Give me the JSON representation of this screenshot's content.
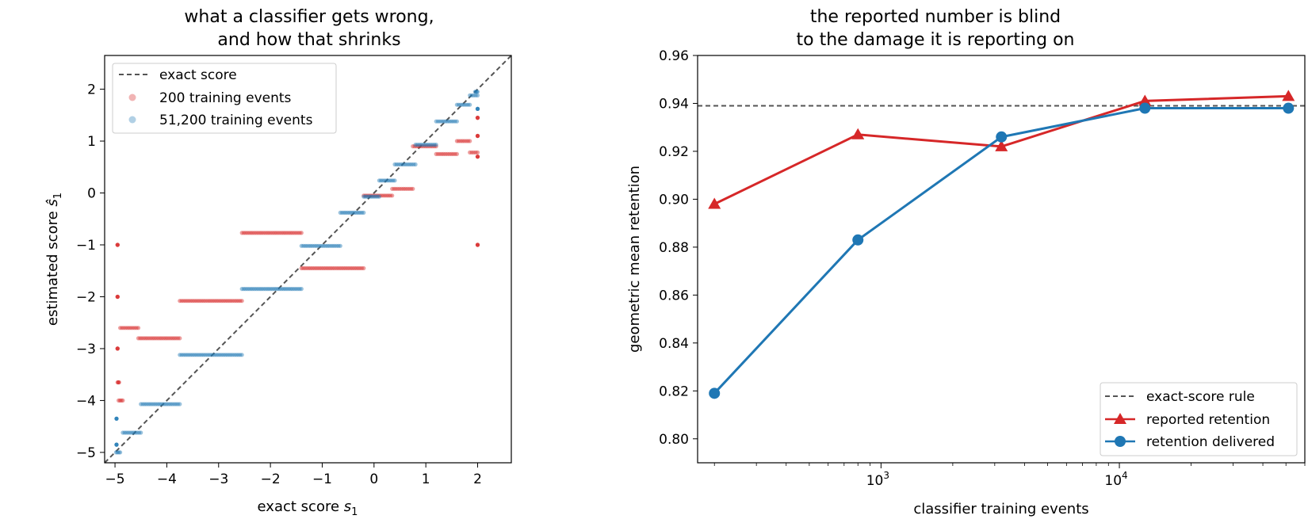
{
  "chart_data": [
    {
      "type": "scatter",
      "title_line1": "what a classifier gets wrong,",
      "title_line2": "and how that shrinks",
      "xlabel": "exact score",
      "xlabel_sym": "s",
      "xlabel_sub": "1",
      "ylabel": "estimated score",
      "ylabel_sym": "ŝ",
      "ylabel_sub": "1",
      "xlim": [
        -5.2,
        2.65
      ],
      "ylim": [
        -5.2,
        2.65
      ],
      "xticks": [
        -5,
        -4,
        -3,
        -2,
        -1,
        0,
        1,
        2
      ],
      "yticks": [
        -5,
        -4,
        -3,
        -2,
        -1,
        0,
        1,
        2
      ],
      "tick_labels": [
        "−5",
        "−4",
        "−3",
        "−2",
        "−1",
        "0",
        "1",
        "2"
      ],
      "legend_position": "upper-left",
      "reference_line": {
        "name": "exact score",
        "style": "dashed",
        "color": "#555555"
      },
      "series": [
        {
          "name": "200 training events",
          "color": "#d62728",
          "steps": [
            {
              "x0": -4.95,
              "x1": -4.95,
              "y": -1.0
            },
            {
              "x0": -4.95,
              "x1": -4.95,
              "y": -2.0
            },
            {
              "x0": -4.95,
              "x1": -4.95,
              "y": -3.0
            },
            {
              "x0": -4.95,
              "x1": -4.92,
              "y": -3.65
            },
            {
              "x0": -4.93,
              "x1": -4.85,
              "y": -4.0
            },
            {
              "x0": -4.9,
              "x1": -4.55,
              "y": -2.6
            },
            {
              "x0": -4.55,
              "x1": -3.75,
              "y": -2.8
            },
            {
              "x0": -3.75,
              "x1": -2.55,
              "y": -2.08
            },
            {
              "x0": -2.55,
              "x1": -1.4,
              "y": -0.77
            },
            {
              "x0": -1.4,
              "x1": -0.2,
              "y": -1.45
            },
            {
              "x0": -0.2,
              "x1": 0.35,
              "y": -0.05
            },
            {
              "x0": 0.35,
              "x1": 0.75,
              "y": 0.08
            },
            {
              "x0": 0.75,
              "x1": 1.2,
              "y": 0.9
            },
            {
              "x0": 1.2,
              "x1": 1.6,
              "y": 0.75
            },
            {
              "x0": 1.6,
              "x1": 1.85,
              "y": 1.0
            },
            {
              "x0": 1.85,
              "x1": 2.0,
              "y": 0.78
            },
            {
              "x0": 2.0,
              "x1": 2.0,
              "y": 0.7
            },
            {
              "x0": 2.0,
              "x1": 2.0,
              "y": 1.1
            },
            {
              "x0": 2.0,
              "x1": 2.0,
              "y": 1.45
            },
            {
              "x0": 2.0,
              "x1": 2.0,
              "y": -1.0
            }
          ]
        },
        {
          "name": "51,200 training events",
          "color": "#1f77b4",
          "steps": [
            {
              "x0": -4.98,
              "x1": -4.9,
              "y": -5.0
            },
            {
              "x0": -4.97,
              "x1": -4.97,
              "y": -4.85
            },
            {
              "x0": -4.97,
              "x1": -4.97,
              "y": -4.35
            },
            {
              "x0": -4.85,
              "x1": -4.5,
              "y": -4.62
            },
            {
              "x0": -4.5,
              "x1": -3.75,
              "y": -4.07
            },
            {
              "x0": -3.75,
              "x1": -2.55,
              "y": -3.12
            },
            {
              "x0": -2.55,
              "x1": -1.4,
              "y": -1.85
            },
            {
              "x0": -1.4,
              "x1": -0.65,
              "y": -1.02
            },
            {
              "x0": -0.65,
              "x1": -0.2,
              "y": -0.38
            },
            {
              "x0": -0.2,
              "x1": 0.1,
              "y": -0.07
            },
            {
              "x0": 0.1,
              "x1": 0.4,
              "y": 0.24
            },
            {
              "x0": 0.4,
              "x1": 0.8,
              "y": 0.55
            },
            {
              "x0": 0.8,
              "x1": 1.2,
              "y": 0.93
            },
            {
              "x0": 1.2,
              "x1": 1.6,
              "y": 1.38
            },
            {
              "x0": 1.6,
              "x1": 1.85,
              "y": 1.7
            },
            {
              "x0": 1.85,
              "x1": 2.0,
              "y": 1.88
            },
            {
              "x0": 1.95,
              "x1": 2.0,
              "y": 1.95
            },
            {
              "x0": 2.0,
              "x1": 2.0,
              "y": 1.62
            }
          ]
        }
      ]
    },
    {
      "type": "line",
      "title_line1": "the reported number is blind",
      "title_line2": "to the damage it is reporting on",
      "xlabel": "classifier training events",
      "ylabel": "geometric mean retention",
      "xscale": "log",
      "xlim": [
        170,
        60000
      ],
      "ylim": [
        0.79,
        0.96
      ],
      "yticks": [
        0.8,
        0.82,
        0.84,
        0.86,
        0.88,
        0.9,
        0.92,
        0.94,
        0.96
      ],
      "ytick_labels": [
        "0.80",
        "0.82",
        "0.84",
        "0.86",
        "0.88",
        "0.90",
        "0.92",
        "0.94",
        "0.96"
      ],
      "xticks_major": [
        1000,
        10000
      ],
      "xtick_base": "10",
      "xtick_exponents": [
        "3",
        "4"
      ],
      "legend_position": "lower-right",
      "x": [
        200,
        800,
        3200,
        12800,
        51200
      ],
      "reference_line": {
        "name": "exact-score rule",
        "y": 0.939,
        "style": "dashed",
        "color": "#555555"
      },
      "series": [
        {
          "name": "reported retention",
          "color": "#d62728",
          "marker": "triangle",
          "values": [
            0.898,
            0.927,
            0.922,
            0.941,
            0.943
          ]
        },
        {
          "name": "retention delivered",
          "color": "#1f77b4",
          "marker": "circle",
          "values": [
            0.819,
            0.883,
            0.926,
            0.938,
            0.938
          ]
        }
      ]
    }
  ]
}
